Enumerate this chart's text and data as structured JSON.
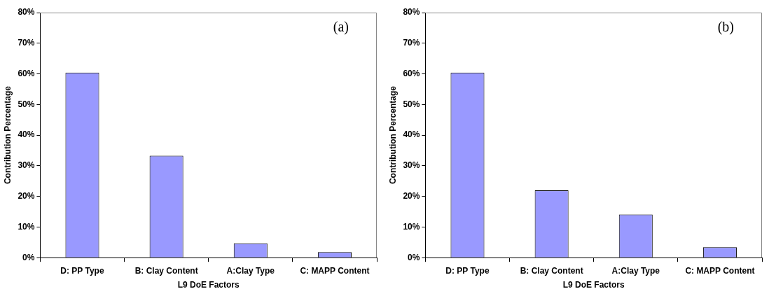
{
  "chart_data": [
    {
      "type": "bar",
      "categories": [
        "D: PP Type",
        "B: Clay Content",
        "A:Clay Type",
        "C: MAPP Content"
      ],
      "values": [
        60.4,
        33.3,
        4.7,
        1.8
      ],
      "color": "#9999ff",
      "xlabel": "L9 DoE Factors",
      "ylabel": "Contribution Percentage",
      "ylim": [
        0,
        80
      ],
      "yticks": [
        {
          "value": 0,
          "label": "0%"
        },
        {
          "value": 10,
          "label": "10%"
        },
        {
          "value": 20,
          "label": "20%"
        },
        {
          "value": 30,
          "label": "30%"
        },
        {
          "value": 40,
          "label": "40%"
        },
        {
          "value": 50,
          "label": "50%"
        },
        {
          "value": 60,
          "label": "60%"
        },
        {
          "value": 70,
          "label": "70%"
        },
        {
          "value": 80,
          "label": "80%"
        }
      ],
      "grid": false,
      "legend": false,
      "annotations": [
        "(a)"
      ]
    },
    {
      "type": "bar",
      "categories": [
        "D: PP Type",
        "B: Clay Content",
        "A:Clay Type",
        "C: MAPP Content"
      ],
      "values": [
        60.4,
        22.0,
        14.1,
        3.4
      ],
      "color": "#9999ff",
      "xlabel": "L9 DoE Factors",
      "ylabel": "Contribution Percentage",
      "ylim": [
        0,
        80
      ],
      "yticks": [
        {
          "value": 0,
          "label": "0%"
        },
        {
          "value": 10,
          "label": "10%"
        },
        {
          "value": 20,
          "label": "20%"
        },
        {
          "value": 30,
          "label": "30%"
        },
        {
          "value": 40,
          "label": "40%"
        },
        {
          "value": 50,
          "label": "50%"
        },
        {
          "value": 60,
          "label": "60%"
        },
        {
          "value": 70,
          "label": "70%"
        },
        {
          "value": 80,
          "label": "80%"
        }
      ],
      "grid": false,
      "legend": false,
      "annotations": [
        "(b)"
      ]
    }
  ]
}
